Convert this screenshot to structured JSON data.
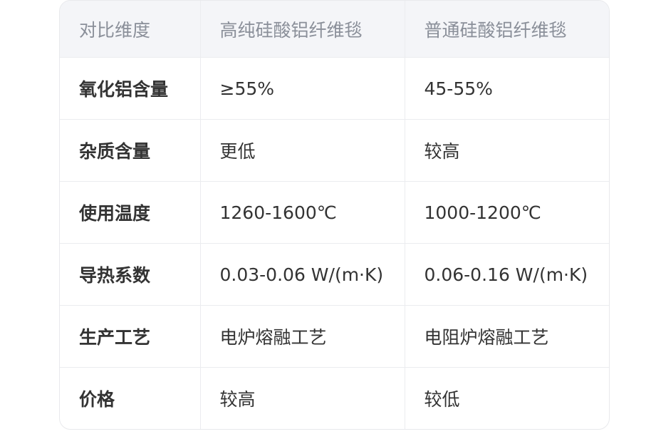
{
  "table": {
    "headers": [
      "对比维度",
      "高纯硅酸铝纤维毯",
      "普通硅酸铝纤维毯"
    ],
    "rows": [
      [
        "氧化铝含量",
        "≥55%",
        "45-55%"
      ],
      [
        "杂质含量",
        "更低",
        "较高"
      ],
      [
        "使用温度",
        "1260-1600℃",
        "1000-1200℃"
      ],
      [
        "导热系数",
        "0.03-0.06 W/(m·K)",
        "0.06-0.16 W/(m·K)"
      ],
      [
        "生产工艺",
        "电炉熔融工艺",
        "电阻炉熔融工艺"
      ],
      [
        "价格",
        "较高",
        "较低"
      ]
    ]
  }
}
